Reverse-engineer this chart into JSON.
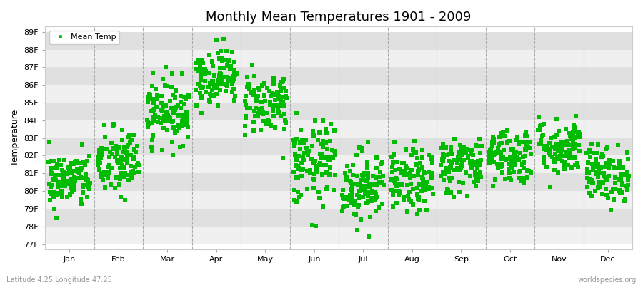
{
  "title": "Monthly Mean Temperatures 1901 - 2009",
  "ylabel": "Temperature",
  "xlabel_bottom": "Latitude 4.25 Longitude 47.25",
  "xlabel_right": "worldspecies.org",
  "yticks": [
    77,
    78,
    79,
    80,
    81,
    82,
    83,
    84,
    85,
    86,
    87,
    88,
    89
  ],
  "ytick_labels": [
    "77F",
    "78F",
    "79F",
    "80F",
    "81F",
    "82F",
    "83F",
    "84F",
    "85F",
    "86F",
    "87F",
    "88F",
    "89F"
  ],
  "ylim": [
    76.7,
    89.3
  ],
  "months": [
    "Jan",
    "Feb",
    "Mar",
    "Apr",
    "May",
    "Jun",
    "Jul",
    "Aug",
    "Sep",
    "Oct",
    "Nov",
    "Dec"
  ],
  "month_centers": [
    0.5,
    1.5,
    2.5,
    3.5,
    4.5,
    5.5,
    6.5,
    7.5,
    8.5,
    9.5,
    10.5,
    11.5
  ],
  "month_means_f": [
    80.6,
    81.6,
    84.5,
    86.5,
    85.0,
    81.5,
    80.3,
    80.5,
    81.5,
    82.0,
    82.5,
    81.0
  ],
  "month_stds_f": [
    0.8,
    1.0,
    0.9,
    0.8,
    0.9,
    1.2,
    1.0,
    0.9,
    0.8,
    0.8,
    0.8,
    0.8
  ],
  "n_years": 109,
  "marker_color": "#00bb00",
  "marker_size": 4,
  "band_colors_light": "#f0f0f0",
  "band_colors_dark": "#e0e0e0",
  "bg_color": "#ffffff",
  "dashed_line_color": "#aaaaaa",
  "title_fontsize": 13,
  "label_fontsize": 9,
  "tick_fontsize": 8,
  "legend_fontsize": 8,
  "seed": 42
}
